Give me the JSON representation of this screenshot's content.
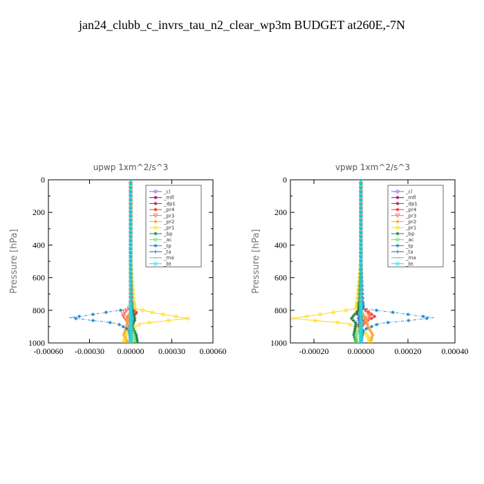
{
  "page_title": "jan24_clubb_c_invrs_tau_n2_clear_wp3m  BUDGET at260E,-7N",
  "chart_data": [
    {
      "type": "line",
      "title": "upwp   1xm^2/s^3",
      "ylabel": "Pressure [hPa]",
      "xlabel": "",
      "xlim": [
        -0.0006,
        0.0006
      ],
      "ylim": [
        1000,
        0
      ],
      "x_ticks": [
        -0.0006,
        -0.0003,
        0.0,
        0.0003,
        0.0006
      ],
      "x_tick_labels": [
        "-0.00060",
        "-0.00030",
        "0.00000",
        "0.00030",
        "0.00060"
      ],
      "y_ticks": [
        0,
        200,
        400,
        600,
        800,
        1000
      ],
      "y_tick_labels": [
        "0",
        "200",
        "400",
        "600",
        "800",
        "1000"
      ],
      "legend": "top-right",
      "series": [
        {
          "name": "_cl",
          "color": "#9a60c8",
          "marker": "o",
          "y": [
            0,
            500,
            800,
            850,
            900,
            1000
          ],
          "x": [
            0,
            0,
            0,
            0,
            0,
            0
          ]
        },
        {
          "name": "_mfl",
          "color": "#8b0a50",
          "marker": "*",
          "y": [
            0,
            500,
            800,
            850,
            900,
            1000
          ],
          "x": [
            0,
            0,
            0,
            0,
            0,
            0
          ]
        },
        {
          "name": "_dp1",
          "color": "#b01850",
          "marker": "*",
          "y": [
            0,
            500,
            780,
            820,
            850,
            880,
            950,
            1000
          ],
          "x": [
            0,
            0,
            0,
            2e-05,
            -2e-05,
            1e-05,
            0,
            0
          ]
        },
        {
          "name": "_pr4",
          "color": "#e83030",
          "marker": "*",
          "y": [
            0,
            500,
            780,
            820,
            840,
            860,
            900,
            1000
          ],
          "x": [
            0,
            0,
            0,
            5e-05,
            -3e-05,
            3e-05,
            0,
            0
          ]
        },
        {
          "name": "_pr3",
          "color": "#ff6a50",
          "marker": "v",
          "y": [
            0,
            500,
            780,
            800,
            830,
            850,
            880,
            920,
            1000
          ],
          "x": [
            0,
            0,
            0,
            -3e-05,
            -6e-05,
            -4e-05,
            -2e-05,
            0,
            0
          ]
        },
        {
          "name": "_pr2",
          "color": "#ffa040",
          "marker": "*",
          "y": [
            0,
            500,
            800,
            850,
            900,
            950,
            1000
          ],
          "x": [
            0,
            0,
            0,
            -2e-05,
            -3e-05,
            -5e-05,
            -2e-05
          ]
        },
        {
          "name": "_pr1",
          "color": "#ffd700",
          "marker": "o",
          "y": [
            0,
            500,
            790,
            820,
            850,
            880,
            920,
            960,
            1000
          ],
          "x": [
            0,
            0,
            3e-05,
            0.0002,
            0.00042,
            8e-05,
            -2e-05,
            -4e-05,
            -5e-05
          ]
        },
        {
          "name": "_bp",
          "color": "#208040",
          "marker": "*",
          "y": [
            0,
            500,
            800,
            850,
            900,
            950,
            1000
          ],
          "x": [
            0,
            0,
            1e-05,
            3e-05,
            1e-05,
            4e-05,
            5e-05
          ]
        },
        {
          "name": "_ac",
          "color": "#60e060",
          "marker": "o",
          "y": [
            0,
            500,
            800,
            850,
            900,
            950,
            1000
          ],
          "x": [
            0,
            0,
            0,
            1e-05,
            0,
            2e-05,
            3e-05
          ]
        },
        {
          "name": "_tp",
          "color": "#1a80c8",
          "marker": "*",
          "y": [
            0,
            500,
            790,
            815,
            835,
            845,
            860,
            880,
            920,
            1000
          ],
          "x": [
            0,
            0,
            1e-05,
            -0.0002,
            -0.00035,
            -0.00045,
            -0.0003,
            -0.0001,
            -1e-05,
            0
          ]
        },
        {
          "name": "_ta",
          "color": "#3050d0",
          "marker": "+",
          "y": [
            0,
            500,
            800,
            850,
            900,
            1000
          ],
          "x": [
            0,
            0,
            0,
            1e-05,
            0,
            0
          ]
        },
        {
          "name": "_ma",
          "color": "#40c0e0",
          "marker": "-",
          "y": [
            0,
            500,
            800,
            850,
            900,
            1000
          ],
          "x": [
            0,
            0,
            0,
            0,
            0,
            0
          ]
        },
        {
          "name": "_bt",
          "color": "#20e0e0",
          "marker": "o",
          "y": [
            0,
            500,
            800,
            850,
            900,
            1000
          ],
          "x": [
            0,
            0,
            0,
            0,
            0,
            0
          ]
        }
      ]
    },
    {
      "type": "line",
      "title": "vpwp   1xm^2/s^3",
      "ylabel": "Pressure [hPa]",
      "xlabel": "",
      "xlim": [
        -0.0003,
        0.0004
      ],
      "ylim": [
        1000,
        0
      ],
      "x_ticks": [
        -0.0002,
        0.0,
        0.0002,
        0.0004
      ],
      "x_tick_labels": [
        "-0.00020",
        "0.00000",
        "0.00020",
        "0.00040"
      ],
      "y_ticks": [
        0,
        200,
        400,
        600,
        800,
        1000
      ],
      "y_tick_labels": [
        "0",
        "200",
        "400",
        "600",
        "800",
        "1000"
      ],
      "legend": "top-right",
      "series": [
        {
          "name": "_cl",
          "color": "#9a60c8",
          "marker": "o",
          "y": [
            0,
            500,
            800,
            850,
            900,
            1000
          ],
          "x": [
            0,
            0,
            0,
            0,
            0,
            0
          ]
        },
        {
          "name": "_mfl",
          "color": "#8b0a50",
          "marker": "*",
          "y": [
            0,
            500,
            800,
            850,
            900,
            1000
          ],
          "x": [
            0,
            0,
            0,
            0,
            0,
            0
          ]
        },
        {
          "name": "_dp1",
          "color": "#b01850",
          "marker": "*",
          "y": [
            0,
            500,
            780,
            820,
            850,
            880,
            950,
            1000
          ],
          "x": [
            0,
            0,
            0,
            -2e-05,
            2e-05,
            -1e-05,
            0,
            0
          ]
        },
        {
          "name": "_pr4",
          "color": "#e83030",
          "marker": "*",
          "y": [
            0,
            500,
            780,
            820,
            840,
            860,
            900,
            1000
          ],
          "x": [
            0,
            0,
            0,
            4e-05,
            6e-05,
            3e-05,
            0,
            0
          ]
        },
        {
          "name": "_pr3",
          "color": "#ff6a50",
          "marker": "v",
          "y": [
            0,
            500,
            780,
            800,
            830,
            850,
            880,
            920,
            1000
          ],
          "x": [
            0,
            0,
            0,
            2e-05,
            4e-05,
            3e-05,
            1e-05,
            0,
            0
          ]
        },
        {
          "name": "_pr2",
          "color": "#ffa040",
          "marker": "*",
          "y": [
            0,
            500,
            800,
            850,
            900,
            950,
            1000
          ],
          "x": [
            0,
            0,
            0,
            2e-05,
            3e-05,
            5e-05,
            4e-05
          ]
        },
        {
          "name": "_pr1",
          "color": "#ffd700",
          "marker": "o",
          "y": [
            0,
            500,
            790,
            820,
            850,
            880,
            920,
            960,
            1000
          ],
          "x": [
            0,
            0,
            -2e-05,
            -0.00015,
            -0.00029,
            -6e-05,
            1e-05,
            3e-05,
            4e-05
          ]
        },
        {
          "name": "_bp",
          "color": "#208040",
          "marker": "*",
          "y": [
            0,
            500,
            800,
            830,
            850,
            880,
            950,
            1000
          ],
          "x": [
            0,
            0,
            -1e-05,
            -3e-05,
            -4e-05,
            -2e-05,
            -3e-05,
            -2e-05
          ]
        },
        {
          "name": "_ac",
          "color": "#60e060",
          "marker": "o",
          "y": [
            0,
            500,
            800,
            850,
            900,
            950,
            1000
          ],
          "x": [
            0,
            0,
            0,
            -1e-05,
            0,
            -2e-05,
            -2e-05
          ]
        },
        {
          "name": "_tp",
          "color": "#1a80c8",
          "marker": "*",
          "y": [
            0,
            500,
            790,
            815,
            835,
            845,
            860,
            880,
            920,
            1000
          ],
          "x": [
            0,
            0,
            1e-05,
            0.00015,
            0.00025,
            0.00031,
            0.00022,
            8e-05,
            1e-05,
            0
          ]
        },
        {
          "name": "_ta",
          "color": "#3050d0",
          "marker": "+",
          "y": [
            0,
            500,
            800,
            850,
            900,
            1000
          ],
          "x": [
            0,
            0,
            0,
            -1e-05,
            0,
            0
          ]
        },
        {
          "name": "_ma",
          "color": "#40c0e0",
          "marker": "-",
          "y": [
            0,
            500,
            800,
            850,
            900,
            1000
          ],
          "x": [
            0,
            0,
            0,
            0,
            0,
            0
          ]
        },
        {
          "name": "_bt",
          "color": "#20e0e0",
          "marker": "o",
          "y": [
            0,
            500,
            800,
            850,
            900,
            1000
          ],
          "x": [
            0,
            0,
            0,
            0,
            0,
            0
          ]
        }
      ]
    }
  ]
}
